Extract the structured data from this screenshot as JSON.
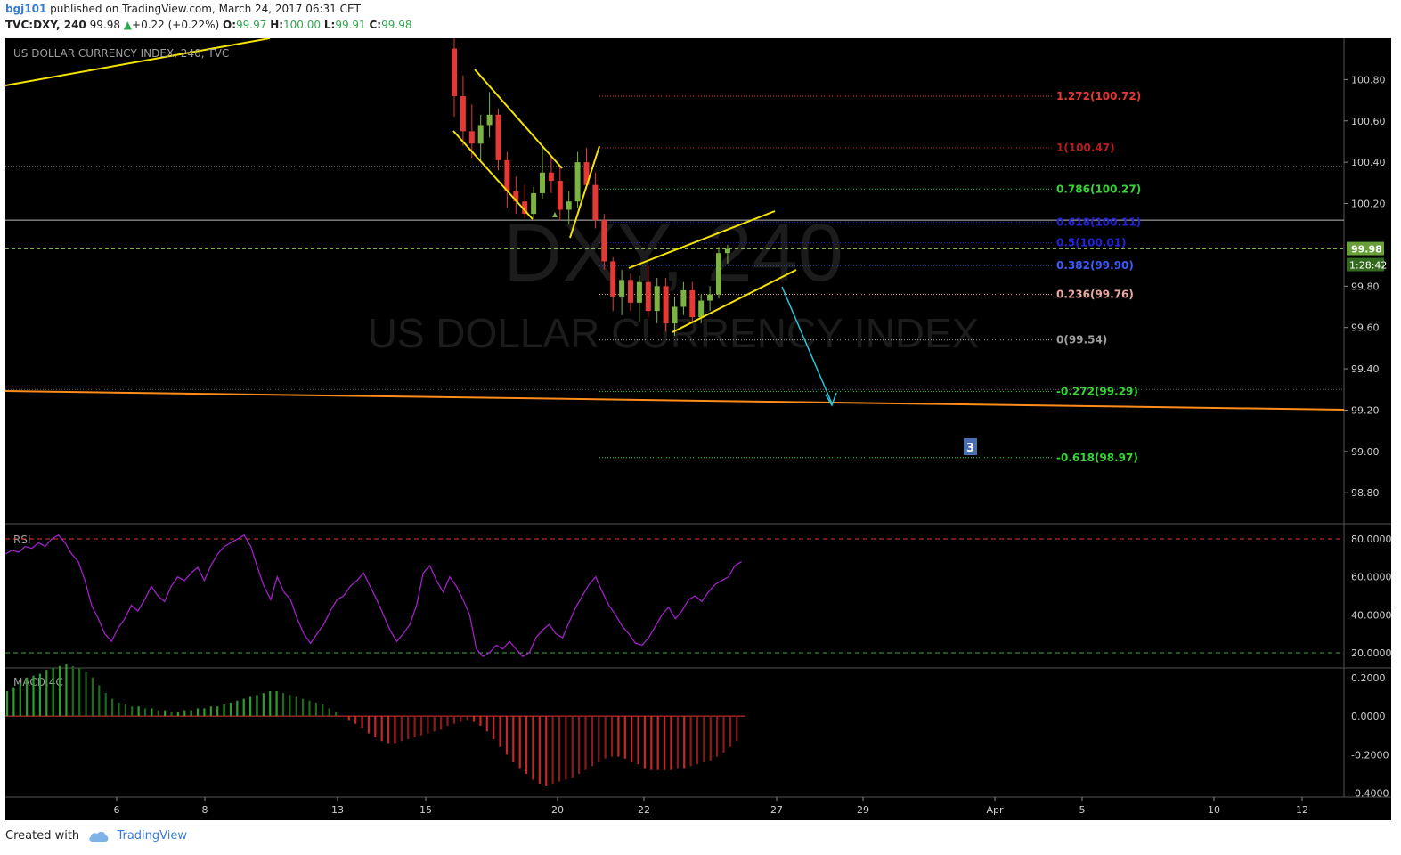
{
  "header": {
    "user": "bgj101",
    "published_text": "published on TradingView.com, March 24, 2017 06:31 CET",
    "symbol": "TVC:DXY, 240",
    "last": "99.98",
    "change_arrow": "▲",
    "change": "+0.22 (+0.22%)",
    "o_label": "O:",
    "o": "99.97",
    "h_label": "H:",
    "h": "100.00",
    "l_label": "L:",
    "l": "99.91",
    "c_label": "C:",
    "c": "99.98"
  },
  "footer": {
    "created_with": "Created with",
    "brand": "TradingView"
  },
  "colors": {
    "bg": "#000000",
    "up": "#7cb342",
    "down": "#e53935",
    "trend": "#f5e400",
    "support": "#ff8c1a",
    "arrow": "#26c6da",
    "rsi": "#a020c8",
    "grid": "#333333"
  },
  "chart_data": {
    "type": "candlestick",
    "title": "US DOLLAR CURRENCY INDEX, 240, TVC",
    "watermark_symbol": "DXY, 240",
    "watermark_name": "US DOLLAR CURRENCY INDEX",
    "price_axis": {
      "ticks": [
        "100.80",
        "100.60",
        "100.40",
        "100.20",
        "99.80",
        "99.60",
        "99.40",
        "99.20",
        "99.00",
        "98.80"
      ],
      "range": [
        98.65,
        101.0
      ]
    },
    "last_price_label": "99.98",
    "countdown_label": "1:28:42",
    "time_axis": {
      "labels": [
        "6",
        "8",
        "13",
        "15",
        "20",
        "22",
        "27",
        "29",
        "Apr",
        "5",
        "10",
        "12"
      ]
    },
    "fib_levels": [
      {
        "label": "1.272(100.72)",
        "value": 100.72,
        "color": "#e53935"
      },
      {
        "label": "1(100.47)",
        "value": 100.47,
        "color": "#b71c1c"
      },
      {
        "label": "0.786(100.27)",
        "value": 100.27,
        "color": "#34d534"
      },
      {
        "label": "0.618(100.11)",
        "value": 100.11,
        "color": "#2222dd"
      },
      {
        "label": "0.5(100.01)",
        "value": 100.01,
        "color": "#2222dd"
      },
      {
        "label": "0.382(99.90)",
        "value": 99.9,
        "color": "#3a5bff"
      },
      {
        "label": "0.236(99.76)",
        "value": 99.76,
        "color": "#e8a8a0"
      },
      {
        "label": "0(99.54)",
        "value": 99.54,
        "color": "#9e9e9e"
      },
      {
        "label": "-0.272(99.29)",
        "value": 99.29,
        "color": "#34d534"
      },
      {
        "label": "-0.618(98.97)",
        "value": 98.97,
        "color": "#34d534"
      }
    ],
    "candles": [
      {
        "o": 100.95,
        "h": 101.05,
        "l": 100.62,
        "c": 100.72
      },
      {
        "o": 100.72,
        "h": 100.82,
        "l": 100.48,
        "c": 100.55
      },
      {
        "o": 100.55,
        "h": 100.68,
        "l": 100.42,
        "c": 100.49
      },
      {
        "o": 100.49,
        "h": 100.63,
        "l": 100.4,
        "c": 100.58
      },
      {
        "o": 100.58,
        "h": 100.74,
        "l": 100.52,
        "c": 100.63
      },
      {
        "o": 100.63,
        "h": 100.66,
        "l": 100.36,
        "c": 100.41
      },
      {
        "o": 100.41,
        "h": 100.45,
        "l": 100.18,
        "c": 100.26
      },
      {
        "o": 100.26,
        "h": 100.33,
        "l": 100.15,
        "c": 100.21
      },
      {
        "o": 100.21,
        "h": 100.29,
        "l": 100.13,
        "c": 100.15
      },
      {
        "o": 100.15,
        "h": 100.28,
        "l": 100.13,
        "c": 100.25
      },
      {
        "o": 100.25,
        "h": 100.47,
        "l": 100.22,
        "c": 100.35
      },
      {
        "o": 100.35,
        "h": 100.43,
        "l": 100.25,
        "c": 100.31
      },
      {
        "o": 100.31,
        "h": 100.38,
        "l": 100.12,
        "c": 100.17
      },
      {
        "o": 100.17,
        "h": 100.26,
        "l": 100.1,
        "c": 100.21
      },
      {
        "o": 100.21,
        "h": 100.45,
        "l": 100.18,
        "c": 100.4
      },
      {
        "o": 100.4,
        "h": 100.47,
        "l": 100.27,
        "c": 100.29
      },
      {
        "o": 100.29,
        "h": 100.35,
        "l": 100.08,
        "c": 100.12
      },
      {
        "o": 100.12,
        "h": 100.15,
        "l": 99.88,
        "c": 99.92
      },
      {
        "o": 99.92,
        "h": 99.94,
        "l": 99.68,
        "c": 99.75
      },
      {
        "o": 99.75,
        "h": 99.88,
        "l": 99.66,
        "c": 99.83
      },
      {
        "o": 99.83,
        "h": 99.86,
        "l": 99.68,
        "c": 99.72
      },
      {
        "o": 99.72,
        "h": 99.85,
        "l": 99.63,
        "c": 99.82
      },
      {
        "o": 99.82,
        "h": 99.9,
        "l": 99.65,
        "c": 99.68
      },
      {
        "o": 99.68,
        "h": 99.84,
        "l": 99.62,
        "c": 99.8
      },
      {
        "o": 99.8,
        "h": 99.84,
        "l": 99.58,
        "c": 99.62
      },
      {
        "o": 99.62,
        "h": 99.75,
        "l": 99.56,
        "c": 99.7
      },
      {
        "o": 99.7,
        "h": 99.82,
        "l": 99.66,
        "c": 99.78
      },
      {
        "o": 99.78,
        "h": 99.82,
        "l": 99.62,
        "c": 99.65
      },
      {
        "o": 99.65,
        "h": 99.76,
        "l": 99.62,
        "c": 99.73
      },
      {
        "o": 99.73,
        "h": 99.8,
        "l": 99.68,
        "c": 99.76
      },
      {
        "o": 99.76,
        "h": 99.99,
        "l": 99.74,
        "c": 99.96
      },
      {
        "o": 99.96,
        "h": 100.0,
        "l": 99.91,
        "c": 99.98
      }
    ],
    "rsi": {
      "label": "RSI",
      "ticks": [
        "80.0000",
        "60.0000",
        "40.0000",
        "20.0000"
      ],
      "levels": [
        80,
        20
      ],
      "range": [
        12,
        88
      ],
      "values": [
        72,
        74,
        73,
        76,
        75,
        78,
        76,
        80,
        82,
        78,
        72,
        68,
        58,
        45,
        38,
        30,
        26,
        33,
        38,
        45,
        42,
        48,
        55,
        50,
        47,
        55,
        60,
        58,
        62,
        65,
        58,
        66,
        72,
        76,
        78,
        80,
        82,
        76,
        65,
        55,
        48,
        60,
        52,
        48,
        38,
        30,
        25,
        30,
        35,
        42,
        48,
        50,
        55,
        58,
        62,
        55,
        48,
        40,
        32,
        26,
        30,
        35,
        45,
        62,
        66,
        58,
        52,
        60,
        55,
        48,
        40,
        22,
        18,
        20,
        24,
        22,
        26,
        22,
        18,
        20,
        28,
        32,
        35,
        30,
        28,
        36,
        44,
        50,
        56,
        60,
        52,
        45,
        40,
        34,
        30,
        25,
        24,
        28,
        34,
        40,
        44,
        38,
        42,
        48,
        50,
        47,
        52,
        56,
        58,
        60,
        66,
        68
      ],
      "start_x_frac": 0.0,
      "end_x_frac": 0.55
    },
    "macd": {
      "label": "MACD,4C",
      "ticks": [
        "0.2000",
        "0.0000",
        "-0.2000",
        "-0.4000"
      ],
      "range": [
        -0.42,
        0.25
      ],
      "values": [
        0.13,
        0.15,
        0.17,
        0.2,
        0.21,
        0.22,
        0.24,
        0.25,
        0.26,
        0.27,
        0.26,
        0.25,
        0.23,
        0.2,
        0.16,
        0.12,
        0.09,
        0.07,
        0.06,
        0.05,
        0.05,
        0.04,
        0.04,
        0.03,
        0.03,
        0.02,
        0.02,
        0.03,
        0.03,
        0.04,
        0.04,
        0.05,
        0.05,
        0.06,
        0.07,
        0.08,
        0.09,
        0.1,
        0.11,
        0.12,
        0.13,
        0.13,
        0.12,
        0.11,
        0.1,
        0.09,
        0.08,
        0.07,
        0.06,
        0.04,
        0.02,
        0.0,
        -0.02,
        -0.04,
        -0.06,
        -0.09,
        -0.11,
        -0.13,
        -0.14,
        -0.14,
        -0.13,
        -0.12,
        -0.11,
        -0.1,
        -0.09,
        -0.08,
        -0.07,
        -0.05,
        -0.04,
        -0.03,
        -0.02,
        -0.03,
        -0.05,
        -0.08,
        -0.12,
        -0.16,
        -0.2,
        -0.24,
        -0.27,
        -0.3,
        -0.33,
        -0.35,
        -0.36,
        -0.35,
        -0.34,
        -0.33,
        -0.32,
        -0.3,
        -0.28,
        -0.26,
        -0.24,
        -0.22,
        -0.21,
        -0.21,
        -0.22,
        -0.24,
        -0.25,
        -0.27,
        -0.28,
        -0.28,
        -0.28,
        -0.28,
        -0.27,
        -0.27,
        -0.26,
        -0.25,
        -0.24,
        -0.23,
        -0.21,
        -0.19,
        -0.16,
        -0.13
      ],
      "end_x_frac": 0.55
    },
    "wave_label": "3"
  }
}
